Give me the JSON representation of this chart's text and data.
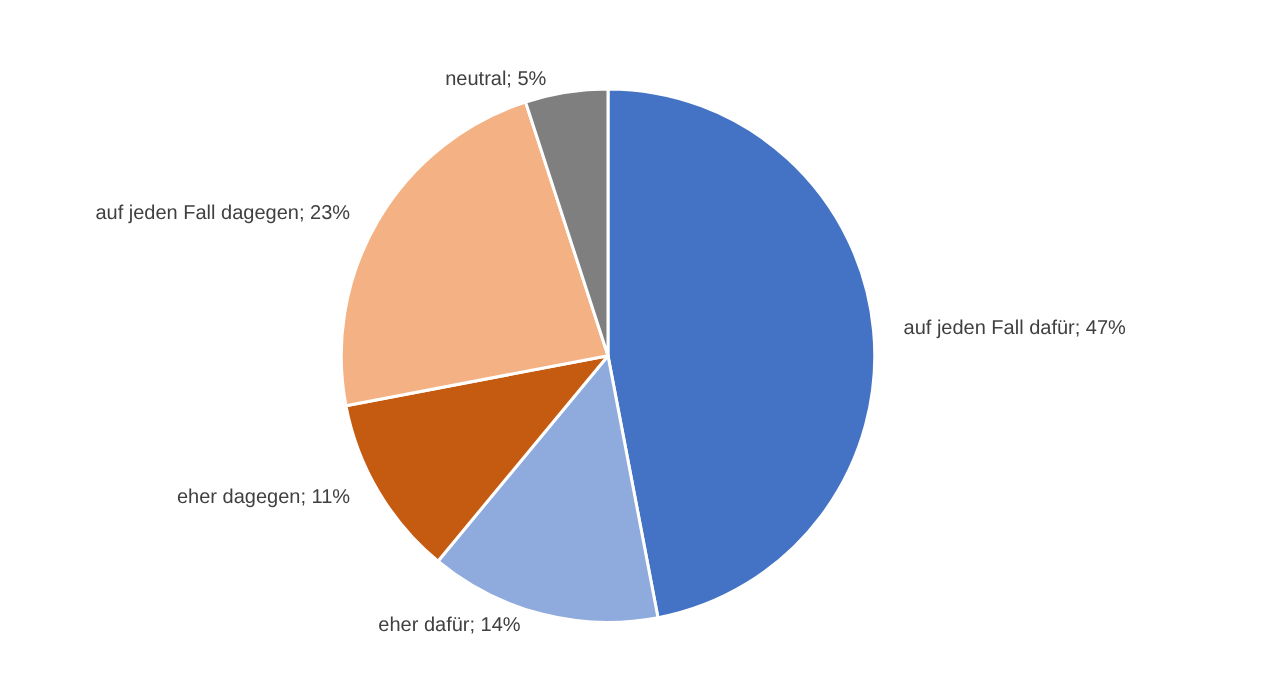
{
  "chart_data": {
    "type": "pie",
    "categories": [
      "auf jeden Fall dafür",
      "eher dafür",
      "eher dagegen",
      "auf jeden Fall dagegen",
      "neutral"
    ],
    "values": [
      47,
      14,
      11,
      23,
      5
    ],
    "value_labels": [
      "47%",
      "14%",
      "11%",
      "23%",
      "5%"
    ],
    "colors": [
      "#4472c4",
      "#8faadc",
      "#c55a11",
      "#f4b183",
      "#7f7f7f"
    ],
    "legend": false
  }
}
